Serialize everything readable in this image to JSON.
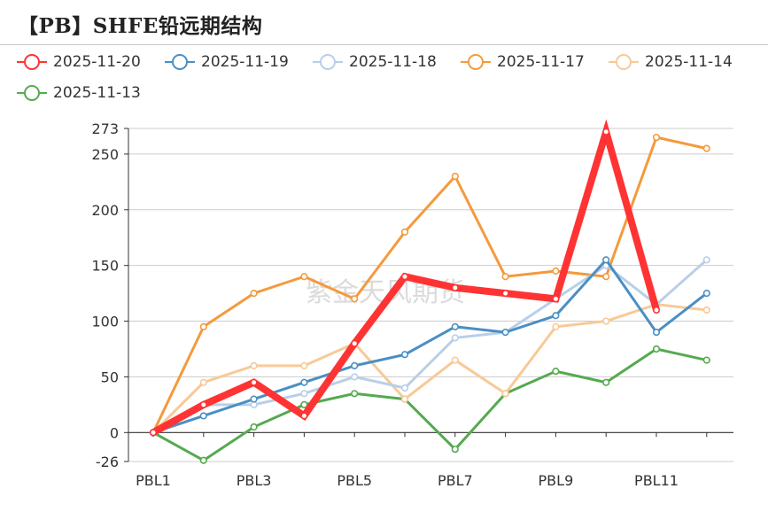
{
  "title": "【PB】SHFE铅远期结构",
  "watermark": "紫金天风期货",
  "chart_data": {
    "type": "line",
    "categories": [
      "PBL1",
      "PBL2",
      "PBL3",
      "PBL4",
      "PBL5",
      "PBL6",
      "PBL7",
      "PBL8",
      "PBL9",
      "PBL10",
      "PBL11",
      "PBL12"
    ],
    "x_tick_labels": [
      "PBL1",
      "PBL3",
      "PBL5",
      "PBL7",
      "PBL9",
      "PBL11"
    ],
    "y_ticks": [
      -26,
      0,
      50,
      100,
      150,
      200,
      250,
      273
    ],
    "ylim": [
      -26,
      273
    ],
    "grid": true,
    "legend_position": "top-left",
    "series": [
      {
        "name": "2025-11-20",
        "color": "#ff3333",
        "emphasis": true,
        "values": [
          0,
          25,
          45,
          15,
          80,
          140,
          130,
          125,
          120,
          270,
          110,
          null
        ]
      },
      {
        "name": "2025-11-19",
        "color": "#4a8fc4",
        "values": [
          0,
          15,
          30,
          45,
          60,
          70,
          95,
          90,
          105,
          155,
          90,
          125
        ]
      },
      {
        "name": "2025-11-18",
        "color": "#b9cfe8",
        "values": [
          0,
          25,
          25,
          35,
          50,
          40,
          85,
          90,
          120,
          150,
          115,
          155
        ]
      },
      {
        "name": "2025-11-17",
        "color": "#f49a3d",
        "values": [
          0,
          95,
          125,
          140,
          120,
          180,
          230,
          140,
          145,
          140,
          265,
          255
        ]
      },
      {
        "name": "2025-11-14",
        "color": "#f8c997",
        "values": [
          0,
          45,
          60,
          60,
          80,
          30,
          65,
          35,
          95,
          100,
          115,
          110
        ]
      },
      {
        "name": "2025-11-13",
        "color": "#55aa4f",
        "values": [
          0,
          -25,
          5,
          25,
          35,
          30,
          -15,
          35,
          55,
          45,
          75,
          65
        ]
      }
    ]
  }
}
